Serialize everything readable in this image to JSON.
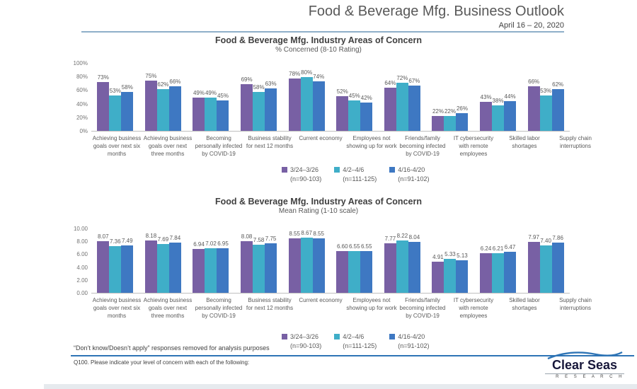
{
  "header": {
    "title": "Food & Beverage Mfg. Business Outlook",
    "date": "April 16 – 20, 2020"
  },
  "legend": {
    "items": [
      {
        "label": "3/24–3/26",
        "n": "(n=90-103)",
        "color": "#7860A4"
      },
      {
        "label": "4/2–4/6",
        "n": "(n=111-125)",
        "color": "#3FAEC8"
      },
      {
        "label": "4/16-4/20",
        "n": "(n=91-102)",
        "color": "#3E78C2"
      }
    ]
  },
  "chart_data": [
    {
      "type": "bar",
      "title": "Food & Beverage Mfg. Industry Areas of Concern",
      "subtitle": "% Concerned (8-10 Rating)",
      "categories": [
        "Achieving business goals over next six months",
        "Achieving business goals over next three months",
        "Becoming personally infected by COVID-19",
        "Business stability for next 12 months",
        "Current economy",
        "Employees not showing up for work",
        "Friends/family becoming infected by COVID-19",
        "IT cybersecurity with remote employees",
        "Skilled labor shortages",
        "Supply chain interruptions"
      ],
      "series": [
        {
          "name": "3/24–3/26 (n=90-103)",
          "color": "#7860A4",
          "values": [
            73,
            75,
            49,
            69,
            78,
            52,
            64,
            22,
            43,
            66
          ]
        },
        {
          "name": "4/2–4/6 (n=111-125)",
          "color": "#3FAEC8",
          "values": [
            53,
            62,
            49,
            58,
            80,
            45,
            72,
            22,
            38,
            53
          ]
        },
        {
          "name": "4/16-4/20 (n=91-102)",
          "color": "#3E78C2",
          "values": [
            58,
            66,
            45,
            63,
            74,
            42,
            67,
            26,
            44,
            62
          ]
        }
      ],
      "ylim": [
        0,
        100
      ],
      "yticks": [
        "0%",
        "20%",
        "40%",
        "60%",
        "80%",
        "100%"
      ],
      "label_format": "percent",
      "grid": false,
      "legend_position": "bottom"
    },
    {
      "type": "bar",
      "title": "Food & Beverage Mfg. Industry Areas of Concern",
      "subtitle": "Mean Rating (1-10 scale)",
      "categories": [
        "Achieving business goals over next six months",
        "Achieving business goals over next three months",
        "Becoming personally infected by COVID-19",
        "Business stability for next 12 months",
        "Current economy",
        "Employees not showing up for work",
        "Friends/family becoming infected by COVID-19",
        "IT cybersecurity with remote employees",
        "Skilled labor shortages",
        "Supply chain interruptions"
      ],
      "series": [
        {
          "name": "3/24–3/26 (n=90-103)",
          "color": "#7860A4",
          "values": [
            8.07,
            8.18,
            6.94,
            8.08,
            8.55,
            6.6,
            7.77,
            4.91,
            6.24,
            7.97
          ]
        },
        {
          "name": "4/2–4/6 (n=111-125)",
          "color": "#3FAEC8",
          "values": [
            7.36,
            7.69,
            7.02,
            7.58,
            8.67,
            6.55,
            8.22,
            5.33,
            6.21,
            7.4
          ]
        },
        {
          "name": "4/16-4/20 (n=91-102)",
          "color": "#3E78C2",
          "values": [
            7.49,
            7.84,
            6.95,
            7.75,
            8.55,
            6.55,
            8.04,
            5.13,
            6.47,
            7.86
          ]
        }
      ],
      "ylim": [
        0,
        10
      ],
      "yticks": [
        "0.00",
        "2.00",
        "4.00",
        "6.00",
        "8.00",
        "10.00"
      ],
      "label_format": "fixed2",
      "grid": false,
      "legend_position": "bottom"
    }
  ],
  "footnotes": {
    "note1": "“Don’t know/Doesn’t apply” responses removed for analysis purposes",
    "question": "Q100.  Please indicate your level of concern with each of the following:"
  },
  "logo": {
    "name": "Clear Seas",
    "sub": "R E S E A R C H",
    "accent_color": "#2E74B5"
  }
}
